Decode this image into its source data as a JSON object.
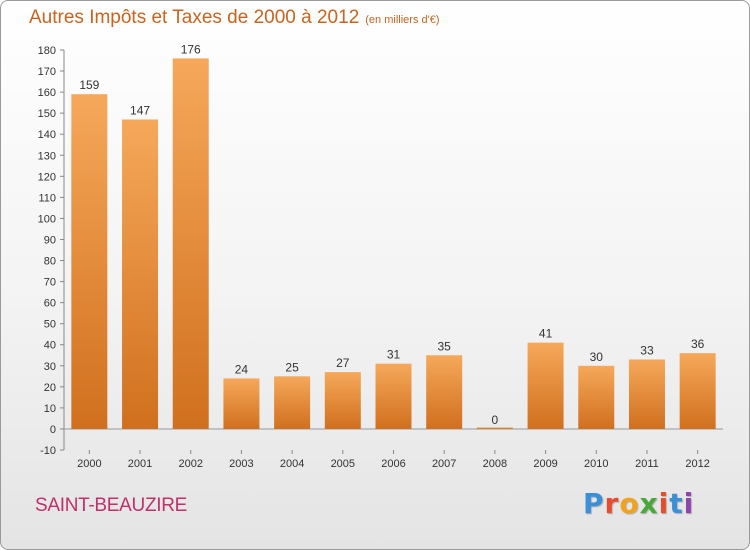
{
  "header": {
    "title": "Autres Impôts et Taxes de 2000 à 2012",
    "subtitle": "(en milliers d'€)"
  },
  "footer": {
    "commune": "SAINT-BEAUZIRE",
    "logo": "Proxiti"
  },
  "colors": {
    "bar_top": "#f6a85a",
    "bar_bottom": "#d0701e",
    "title": "#c8641f",
    "commune": "#c0306a",
    "logo_letters": [
      "#3a8fd6",
      "#e74c2c",
      "#f2a31d",
      "#4aa83a",
      "#e74c2c",
      "#3a8fd6",
      "#8e44ad"
    ]
  },
  "chart_data": {
    "type": "bar",
    "categories": [
      "2000",
      "2001",
      "2002",
      "2003",
      "2004",
      "2005",
      "2006",
      "2007",
      "2008",
      "2009",
      "2010",
      "2011",
      "2012"
    ],
    "values": [
      159,
      147,
      176,
      24,
      25,
      27,
      31,
      35,
      0,
      41,
      30,
      33,
      36
    ],
    "ylim": [
      -10,
      180
    ],
    "yticks": [
      -10,
      0,
      10,
      20,
      30,
      40,
      50,
      60,
      70,
      80,
      90,
      100,
      110,
      120,
      130,
      140,
      150,
      160,
      170,
      180
    ],
    "grid": false,
    "data_labels": true
  }
}
